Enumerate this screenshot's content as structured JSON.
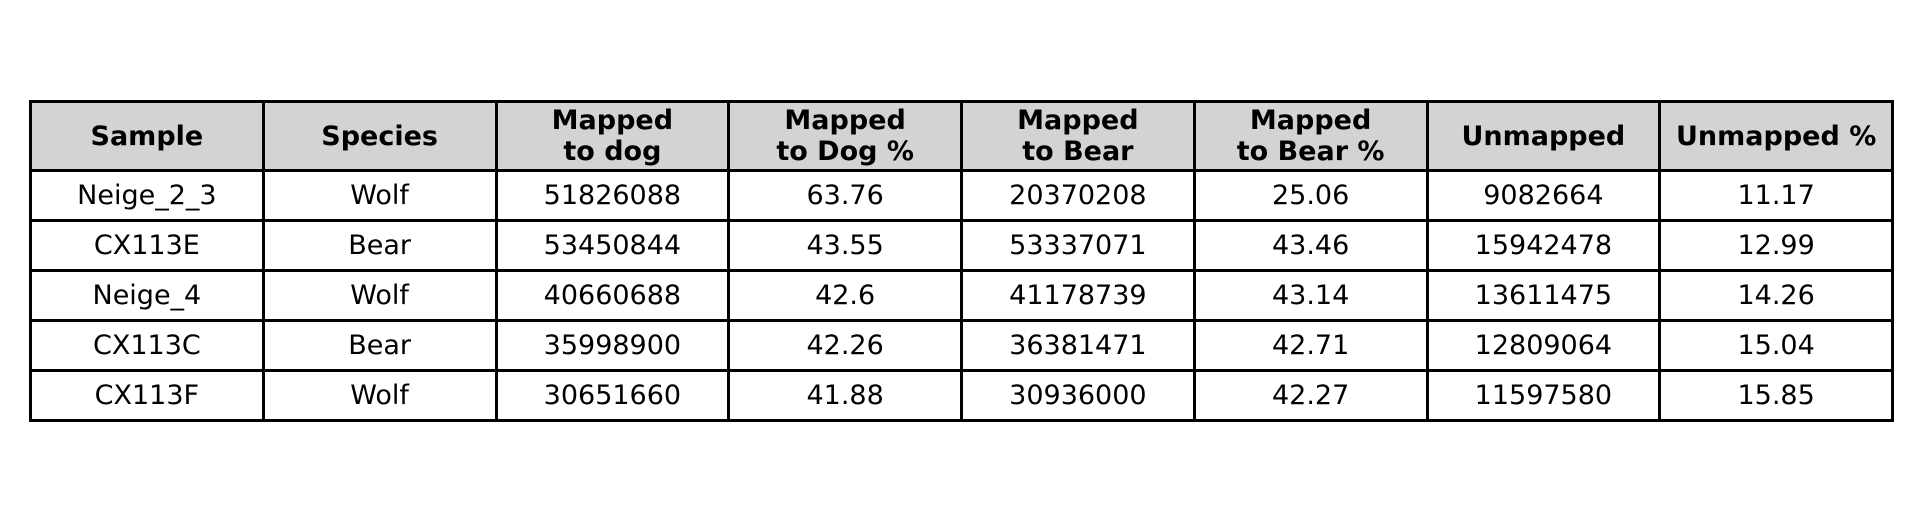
{
  "chart_data": {
    "type": "table",
    "columns": [
      "Sample",
      "Species",
      "Mapped\nto dog",
      "Mapped\nto Dog %",
      "Mapped\nto Bear",
      "Mapped\nto Bear %",
      "Unmapped",
      "Unmapped %"
    ],
    "rows": [
      [
        "Neige_2_3",
        "Wolf",
        "51826088",
        "63.76",
        "20370208",
        "25.06",
        "9082664",
        "11.17"
      ],
      [
        "CX113E",
        "Bear",
        "53450844",
        "43.55",
        "53337071",
        "43.46",
        "15942478",
        "12.99"
      ],
      [
        "Neige_4",
        "Wolf",
        "40660688",
        "42.6",
        "41178739",
        "43.14",
        "13611475",
        "14.26"
      ],
      [
        "CX113C",
        "Bear",
        "35998900",
        "42.26",
        "36381471",
        "42.71",
        "12809064",
        "15.04"
      ],
      [
        "CX113F",
        "Wolf",
        "30651660",
        "41.88",
        "30936000",
        "42.27",
        "11597580",
        "15.85"
      ]
    ],
    "colors": {
      "header_background": "#d3d3d3",
      "cell_background": "#ffffff",
      "border": "#000000",
      "text": "#000000"
    }
  }
}
